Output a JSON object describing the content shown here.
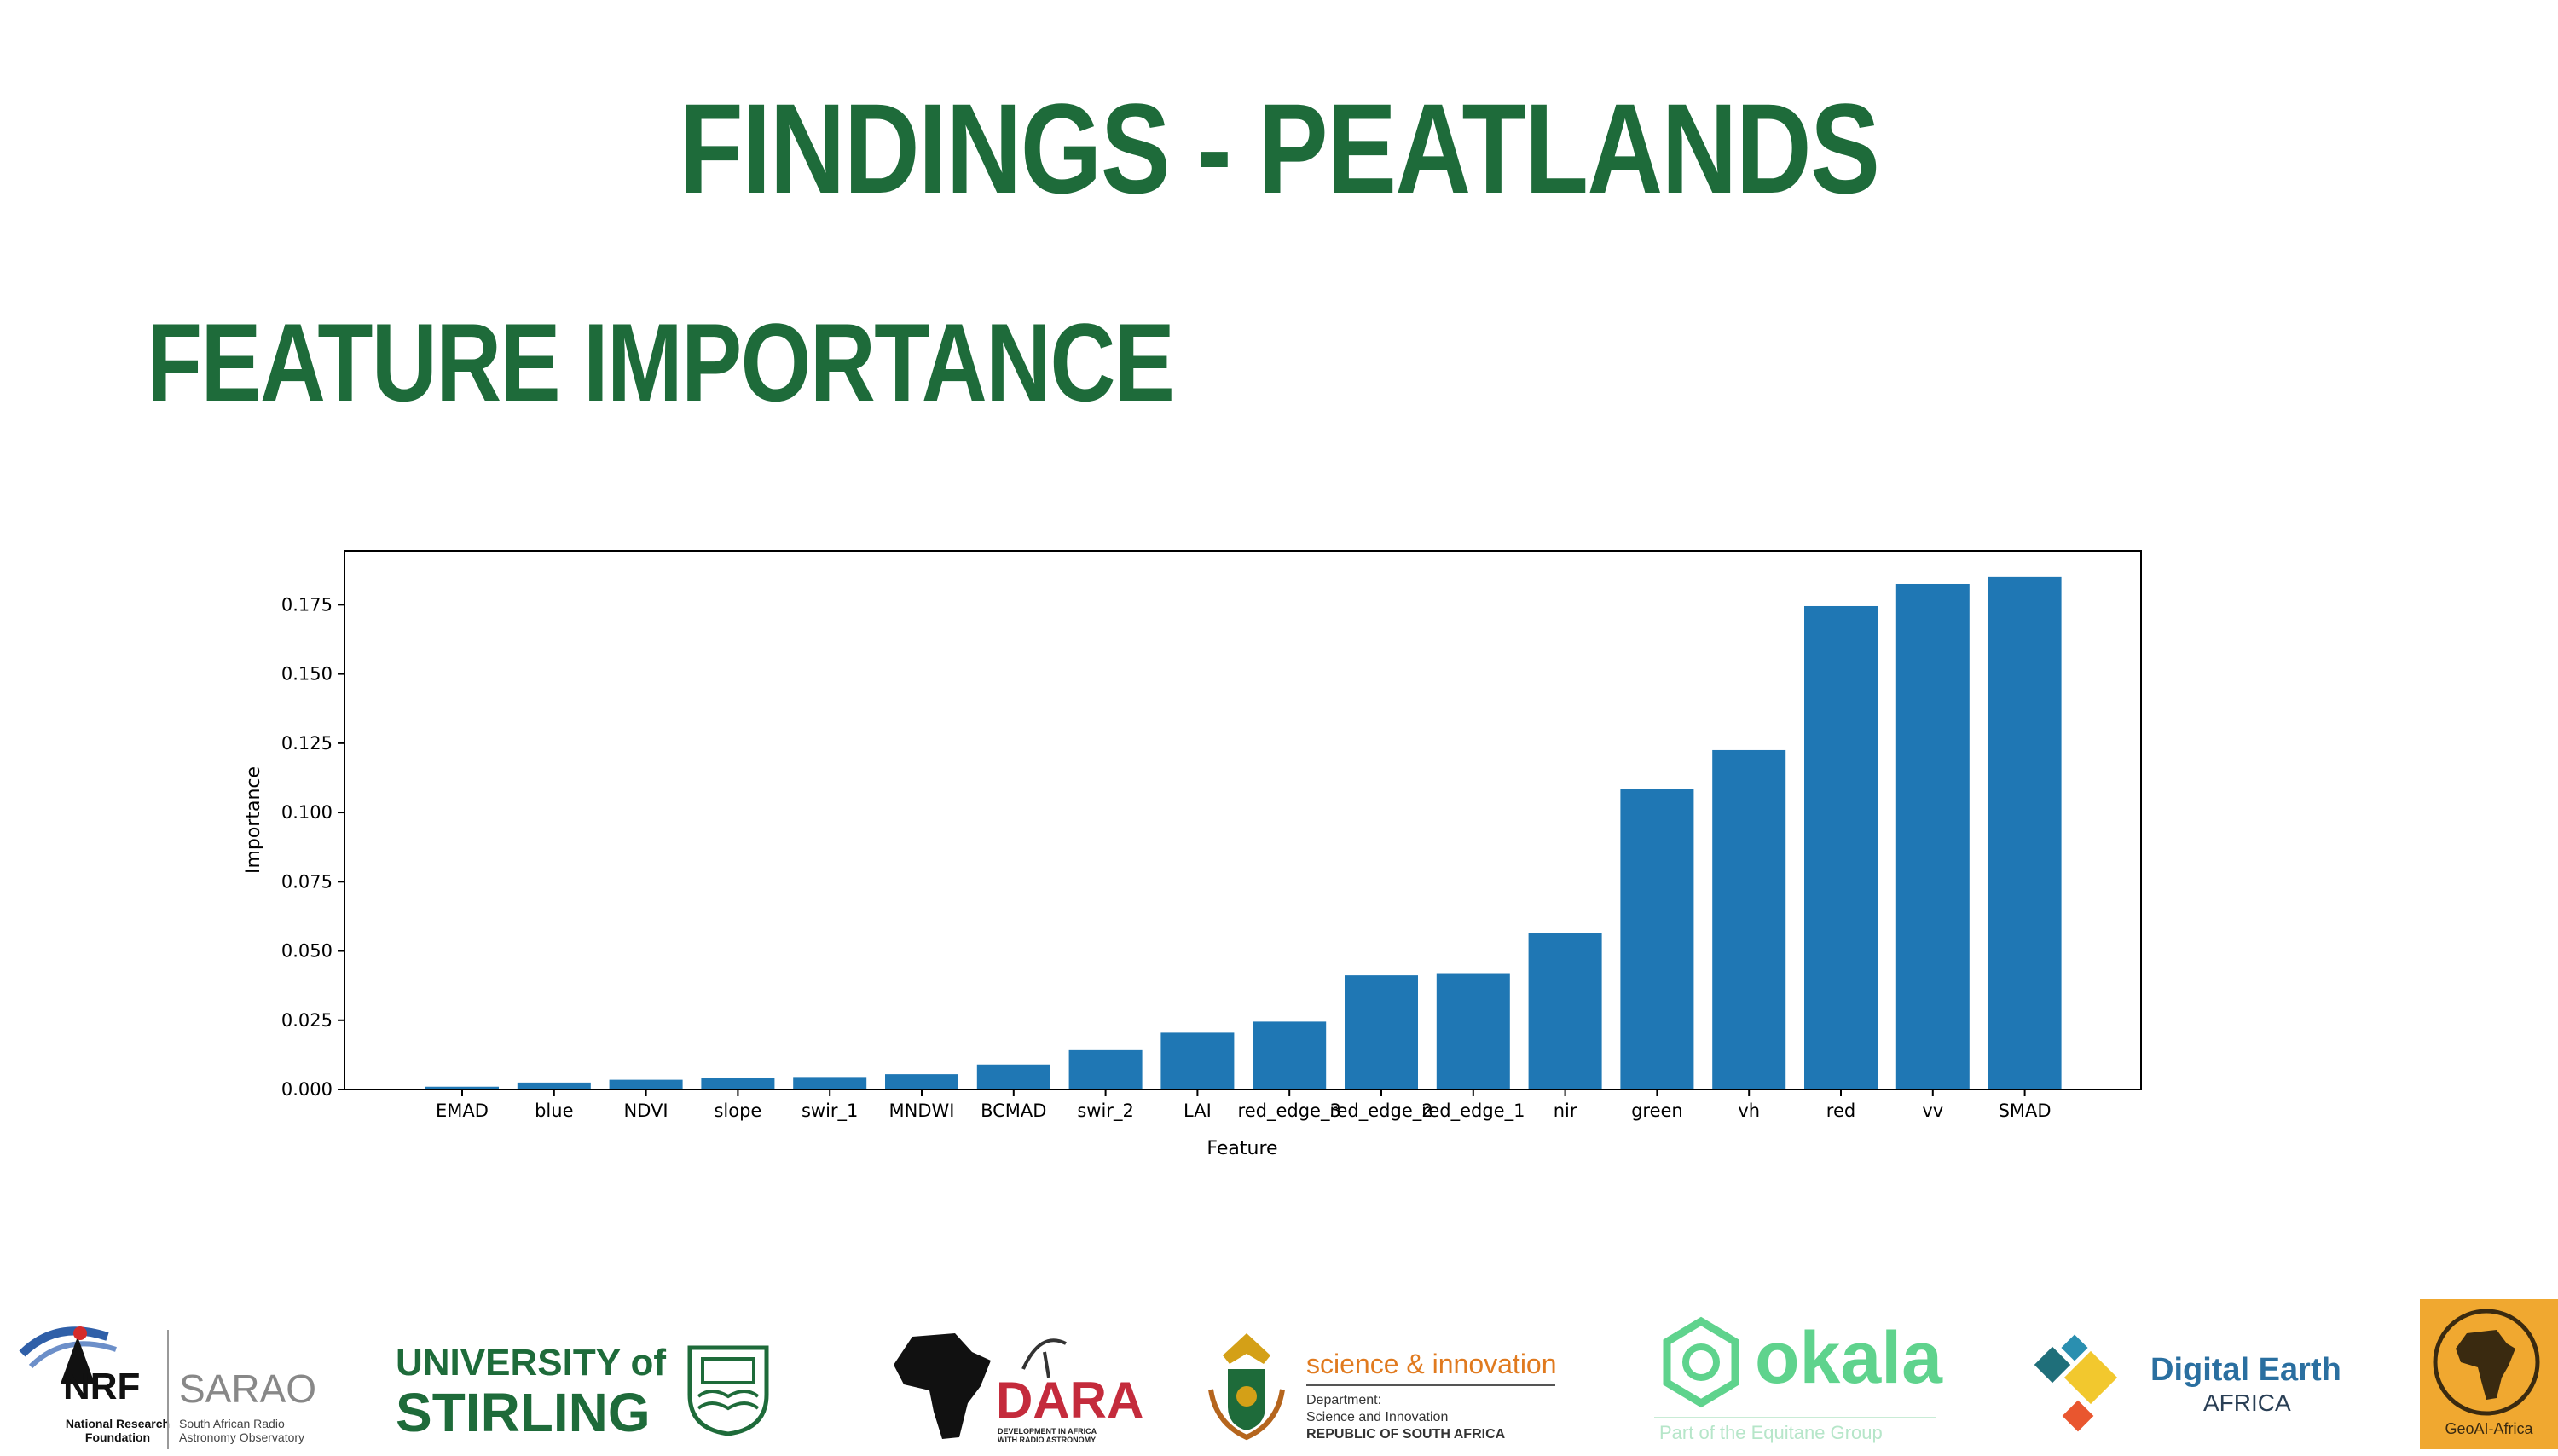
{
  "slide": {
    "title": "FINDINGS - PEATLANDS",
    "subtitle": "FEATURE IMPORTANCE"
  },
  "colors": {
    "heading": "#1e6b3a",
    "bar": "#1f77b4"
  },
  "chart_data": {
    "type": "bar",
    "categories": [
      "EMAD",
      "blue",
      "NDVI",
      "slope",
      "swir_1",
      "MNDWI",
      "BCMAD",
      "swir_2",
      "LAI",
      "red_edge_3",
      "red_edge_2",
      "red_edge_1",
      "nir",
      "green",
      "vh",
      "red",
      "vv",
      "SMAD"
    ],
    "values": [
      0.001,
      0.0025,
      0.0035,
      0.004,
      0.0045,
      0.0055,
      0.009,
      0.0142,
      0.0205,
      0.0245,
      0.0412,
      0.042,
      0.0565,
      0.1085,
      0.1225,
      0.1745,
      0.1825,
      0.185
    ],
    "xlabel": "Feature",
    "ylabel": "Importance",
    "ylim": [
      0,
      0.1945
    ],
    "yticks": [
      "0.000",
      "0.025",
      "0.050",
      "0.075",
      "0.100",
      "0.125",
      "0.150",
      "0.175"
    ],
    "grid": false
  },
  "logos": {
    "nrf": "NRF",
    "nrf_sub": "National Research Foundation",
    "sarao": "SARAO",
    "sarao_sub": "South African Radio Astronomy Observatory",
    "stirling_line1": "UNIVERSITY of",
    "stirling_line2": "STIRLING",
    "dara": "DARA",
    "dara_sub": "DEVELOPMENT IN AFRICA WITH RADIO ASTRONOMY",
    "dsi_title": "science & innovation",
    "dsi_line1": "Department:",
    "dsi_line2": "Science and Innovation",
    "dsi_line3": "REPUBLIC OF SOUTH AFRICA",
    "okala": "okala",
    "okala_sub": "Part of the Equitane Group",
    "de_line1": "Digital Earth",
    "de_line2": "AFRICA",
    "geoai": "GeoAI-Africa"
  }
}
